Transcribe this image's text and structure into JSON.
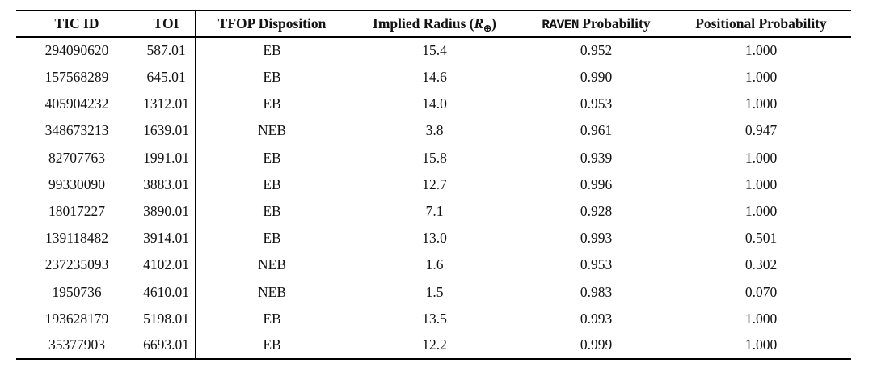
{
  "table": {
    "title": "TFOP disposition table",
    "headers": {
      "tic_id": "TIC ID",
      "toi": "TOI",
      "tfop": "TFOP Disposition",
      "implied_prefix": "Implied Radius (",
      "radius_symbol": "R",
      "earth_symbol": "⊕",
      "implied_suffix": ")",
      "raven_mono": "RAVEN",
      "raven_rest": " Probability",
      "positional": "Positional Probability"
    },
    "rows": [
      [
        "294090620",
        "587.01",
        "EB",
        "15.4",
        "0.952",
        "1.000"
      ],
      [
        "157568289",
        "645.01",
        "EB",
        "14.6",
        "0.990",
        "1.000"
      ],
      [
        "405904232",
        "1312.01",
        "EB",
        "14.0",
        "0.953",
        "1.000"
      ],
      [
        "348673213",
        "1639.01",
        "NEB",
        "3.8",
        "0.961",
        "0.947"
      ],
      [
        "82707763",
        "1991.01",
        "EB",
        "15.8",
        "0.939",
        "1.000"
      ],
      [
        "99330090",
        "3883.01",
        "EB",
        "12.7",
        "0.996",
        "1.000"
      ],
      [
        "18017227",
        "3890.01",
        "EB",
        "7.1",
        "0.928",
        "1.000"
      ],
      [
        "139118482",
        "3914.01",
        "EB",
        "13.0",
        "0.993",
        "0.501"
      ],
      [
        "237235093",
        "4102.01",
        "NEB",
        "1.6",
        "0.953",
        "0.302"
      ],
      [
        "1950736",
        "4610.01",
        "NEB",
        "1.5",
        "0.983",
        "0.070"
      ],
      [
        "193628179",
        "5198.01",
        "EB",
        "13.5",
        "0.993",
        "1.000"
      ],
      [
        "35377903",
        "6693.01",
        "EB",
        "12.2",
        "0.999",
        "1.000"
      ]
    ],
    "colors": {
      "text": "#131313",
      "rule": "#000000",
      "background": "#ffffff"
    }
  }
}
